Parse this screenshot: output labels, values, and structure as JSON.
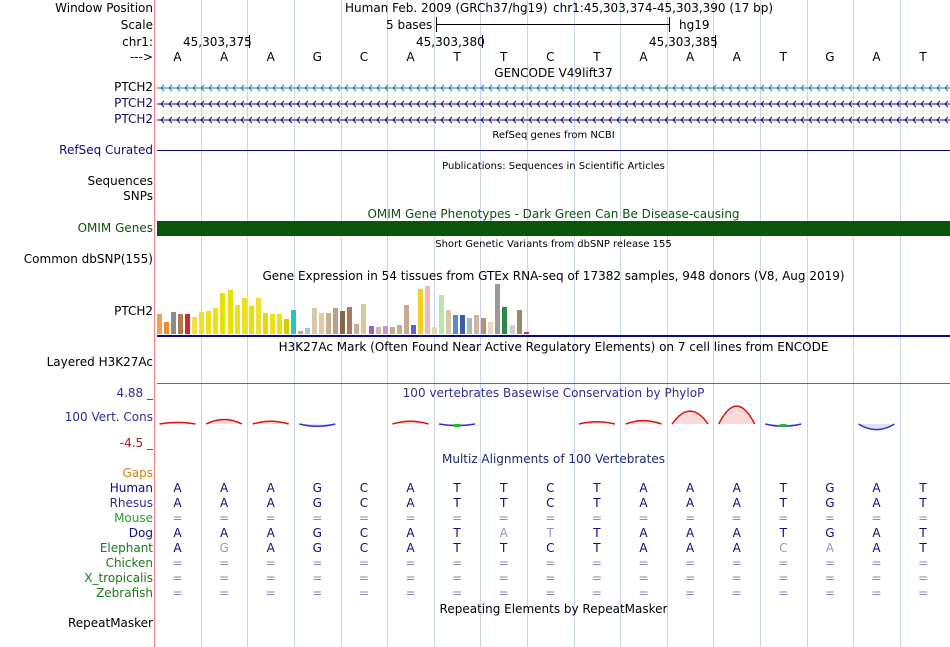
{
  "colors": {
    "grid": "#c9d4f2",
    "divider": "#e98a8a",
    "gencode": "#1a7aa6",
    "navy": "#0c0c78",
    "omim": "#0a550a",
    "phylop": "#2d2d98",
    "multiz": "#1a2870",
    "rhesus": "#2e2e96",
    "mouse": "#2e9b2e",
    "elephant": "#1a7a1a",
    "gaps": "#d0820a",
    "h3k27ac": "#b35a06",
    "cons_pos": "#e01010",
    "cons_neg": "#3030d0",
    "cons_green": "#22bb22"
  },
  "header": {
    "labels": {
      "window_position": "Window Position",
      "scale": "Scale",
      "chrom": "chr1:",
      "arrow": "--->"
    },
    "assembly": "Human Feb. 2009 (GRCh37/hg19)",
    "region": "chr1:45,303,374-45,303,390 (17 bp)",
    "scale_text": "5 bases",
    "scale_db": "hg19",
    "ticks": [
      "45,303,375",
      "45,303,380",
      "45,303,385"
    ]
  },
  "sequence": [
    "A",
    "A",
    "A",
    "G",
    "C",
    "A",
    "T",
    "T",
    "C",
    "T",
    "A",
    "A",
    "A",
    "T",
    "G",
    "A",
    "T"
  ],
  "gencode": {
    "title": "GENCODE V49lift37",
    "transcripts": [
      {
        "name": "PTCH2",
        "strand": "<"
      },
      {
        "name": "PTCH2",
        "strand": "<"
      },
      {
        "name": "PTCH2",
        "strand": "<"
      }
    ]
  },
  "refseq": {
    "title": "RefSeq genes from NCBI",
    "label": "RefSeq Curated"
  },
  "publications": {
    "title": "Publications: Sequences in Scientific Articles",
    "labels": [
      "Sequences",
      "SNPs"
    ]
  },
  "omim": {
    "title": "OMIM Gene Phenotypes - Dark Green Can Be Disease-causing",
    "label": "OMIM Genes"
  },
  "dbsnp": {
    "title": "Short Genetic Variants from dbSNP release 155",
    "label": "Common dbSNP(155)"
  },
  "gtex": {
    "title": "Gene Expression in 54 tissues from GTEx RNA-seq of 17382 samples, 948 donors (V8, Aug 2019)",
    "label": "PTCH2",
    "bars": [
      {
        "v": 0.4,
        "c": "#f0a050"
      },
      {
        "v": 0.24,
        "c": "#f58a28"
      },
      {
        "v": 0.44,
        "c": "#8c8c8c"
      },
      {
        "v": 0.4,
        "c": "#b07a50"
      },
      {
        "v": 0.4,
        "c": "#d42727"
      },
      {
        "v": 0.35,
        "c": "#f0e040"
      },
      {
        "v": 0.44,
        "c": "#f0e028"
      },
      {
        "v": 0.46,
        "c": "#f0e010"
      },
      {
        "v": 0.52,
        "c": "#f0e010"
      },
      {
        "v": 0.83,
        "c": "#e8e000"
      },
      {
        "v": 0.88,
        "c": "#e8e000"
      },
      {
        "v": 0.58,
        "c": "#ece020"
      },
      {
        "v": 0.73,
        "c": "#ece020"
      },
      {
        "v": 0.56,
        "c": "#e8e000"
      },
      {
        "v": 0.73,
        "c": "#eee030"
      },
      {
        "v": 0.42,
        "c": "#e8d800"
      },
      {
        "v": 0.4,
        "c": "#eee020"
      },
      {
        "v": 0.4,
        "c": "#f0e010"
      },
      {
        "v": 0.31,
        "c": "#d0d000"
      },
      {
        "v": 0.48,
        "c": "#22c8c0"
      },
      {
        "v": 0.06,
        "c": "#c8a878"
      },
      {
        "v": 0.13,
        "c": "#9ec9e8"
      },
      {
        "v": 0.52,
        "c": "#d8c8a8"
      },
      {
        "v": 0.42,
        "c": "#e8c8a0"
      },
      {
        "v": 0.42,
        "c": "#c8b090"
      },
      {
        "v": 0.52,
        "c": "#b8a088"
      },
      {
        "v": 0.46,
        "c": "#8c6446"
      },
      {
        "v": 0.54,
        "c": "#a87860"
      },
      {
        "v": 0.2,
        "c": "#c8b090"
      },
      {
        "v": 0.6,
        "c": "#d8c8a0"
      },
      {
        "v": 0.17,
        "c": "#a060c8"
      },
      {
        "v": 0.15,
        "c": "#d8b0a0"
      },
      {
        "v": 0.17,
        "c": "#c898c8"
      },
      {
        "v": 0.15,
        "c": "#c8a890"
      },
      {
        "v": 0.19,
        "c": "#c8b080"
      },
      {
        "v": 0.58,
        "c": "#c8a890"
      },
      {
        "v": 0.19,
        "c": "#6060d0"
      },
      {
        "v": 0.9,
        "c": "#f0d020"
      },
      {
        "v": 0.96,
        "c": "#f0b8b8"
      },
      {
        "v": 0.15,
        "c": "#e8d8a8"
      },
      {
        "v": 0.79,
        "c": "#b8e8a8"
      },
      {
        "v": 0.48,
        "c": "#d8c8a8"
      },
      {
        "v": 0.38,
        "c": "#5888d8"
      },
      {
        "v": 0.38,
        "c": "#3a5ab0"
      },
      {
        "v": 0.33,
        "c": "#a8b8c8"
      },
      {
        "v": 0.38,
        "c": "#c8b8a8"
      },
      {
        "v": 0.33,
        "c": "#b8906a"
      },
      {
        "v": 0.25,
        "c": "#e8d8c0"
      },
      {
        "v": 1.0,
        "c": "#9a9a9a"
      },
      {
        "v": 0.54,
        "c": "#2a8a4a"
      },
      {
        "v": 0.19,
        "c": "#d0d0d0"
      },
      {
        "v": 0.48,
        "c": "#9a8a6a"
      },
      {
        "v": 0.04,
        "c": "#c820c8"
      }
    ]
  },
  "h3k27ac": {
    "title": "H3K27Ac Mark (Often Found Near Active Regulatory Elements) on 7 cell lines from ENCODE",
    "label": "Layered H3K27Ac"
  },
  "phylop": {
    "title": "100 vertebrates Basewise Conservation by PhyloP",
    "label": "100 Vert. Cons",
    "max_label": "4.88 _",
    "min_label": "-4.5 _",
    "range": [
      -4.5,
      4.88
    ],
    "scores": [
      0.3,
      0.8,
      0.5,
      -0.4,
      0,
      0.5,
      -0.3,
      0,
      0,
      0.4,
      0.6,
      2.3,
      3.2,
      -0.4,
      0,
      -1.0,
      0
    ]
  },
  "multiz": {
    "title": "Multiz Alignments of 100 Vertebrates",
    "gaps_label": "Gaps",
    "species": [
      {
        "name": "Human",
        "bases": [
          "A",
          "A",
          "A",
          "G",
          "C",
          "A",
          "T",
          "T",
          "C",
          "T",
          "A",
          "A",
          "A",
          "T",
          "G",
          "A",
          "T"
        ]
      },
      {
        "name": "Rhesus",
        "bases": [
          "A",
          "A",
          "A",
          "G",
          "C",
          "A",
          "T",
          "T",
          "C",
          "T",
          "A",
          "A",
          "A",
          "T",
          "G",
          "A",
          "T"
        ]
      },
      {
        "name": "Mouse",
        "bases": [
          "=",
          "=",
          "=",
          "=",
          "=",
          "=",
          "=",
          "=",
          "=",
          "=",
          "=",
          "=",
          "=",
          "=",
          "=",
          "=",
          "="
        ]
      },
      {
        "name": "Dog",
        "bases": [
          "A",
          "A",
          "A",
          "G",
          "C",
          "A",
          "T",
          "A",
          "T",
          "T",
          "A",
          "A",
          "A",
          "T",
          "G",
          "A",
          "T"
        ]
      },
      {
        "name": "Elephant",
        "bases": [
          "A",
          "G",
          "A",
          "G",
          "C",
          "A",
          "T",
          "T",
          "C",
          "T",
          "A",
          "A",
          "A",
          "C",
          "A",
          "A",
          "T"
        ]
      },
      {
        "name": "Chicken",
        "bases": [
          "=",
          "=",
          "=",
          "=",
          "=",
          "=",
          "=",
          "=",
          "=",
          "=",
          "=",
          "=",
          "=",
          "=",
          "=",
          "=",
          "="
        ]
      },
      {
        "name": "X_tropicalis",
        "bases": [
          "=",
          "=",
          "=",
          "=",
          "=",
          "=",
          "=",
          "=",
          "=",
          "=",
          "=",
          "=",
          "=",
          "=",
          "=",
          "=",
          "="
        ]
      },
      {
        "name": "Zebrafish",
        "bases": [
          "=",
          "=",
          "=",
          "=",
          "=",
          "=",
          "=",
          "=",
          "=",
          "=",
          "=",
          "=",
          "=",
          "=",
          "=",
          "=",
          "="
        ]
      }
    ]
  },
  "repeatmasker": {
    "title": "Repeating Elements by RepeatMasker",
    "label": "RepeatMasker"
  }
}
